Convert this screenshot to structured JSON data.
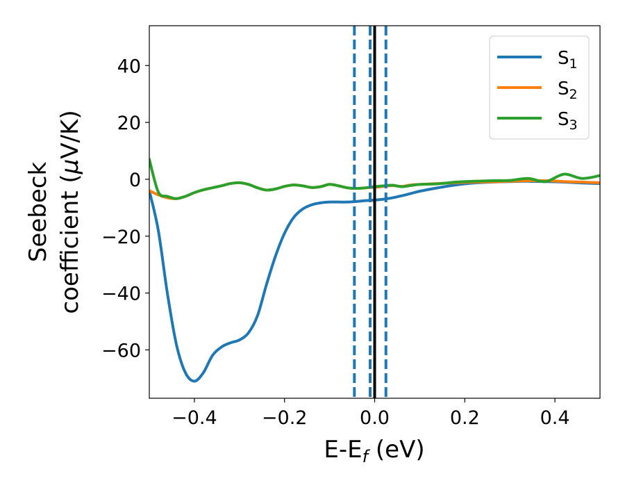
{
  "chart_data": {
    "type": "line",
    "xlabel": "E-E",
    "xlabel_sub": "f",
    "xlabel_unit": " (eV)",
    "ylabel_line1": "Seebeck",
    "ylabel_line2_prefix": "coefficient  (",
    "ylabel_mu": "μ",
    "ylabel_line2_suffix": "V/K)",
    "xlim": [
      -0.5,
      0.5
    ],
    "ylim": [
      -77,
      54
    ],
    "xticks": [
      -0.4,
      -0.2,
      0.0,
      0.2,
      0.4
    ],
    "xtick_labels": [
      "−0.4",
      "−0.2",
      "0.0",
      "0.2",
      "0.4"
    ],
    "yticks": [
      -60,
      -40,
      -20,
      0,
      20,
      40
    ],
    "ytick_labels": [
      "−60",
      "−40",
      "−20",
      "0",
      "20",
      "40"
    ],
    "grid": false,
    "legend_position": "top-right",
    "vlines": [
      {
        "x": -0.045,
        "style": "dashed",
        "color": "#1f77b4"
      },
      {
        "x": -0.01,
        "style": "dashed",
        "color": "#1f77b4"
      },
      {
        "x": 0.025,
        "style": "dashed",
        "color": "#1f77b4"
      },
      {
        "x": 0.0,
        "style": "solid",
        "color": "#000000"
      }
    ],
    "series": [
      {
        "name": "S",
        "sub": "1",
        "color": "#1f77b4",
        "x": [
          -0.5,
          -0.48,
          -0.46,
          -0.44,
          -0.42,
          -0.4,
          -0.38,
          -0.36,
          -0.34,
          -0.32,
          -0.3,
          -0.28,
          -0.26,
          -0.24,
          -0.22,
          -0.2,
          -0.18,
          -0.16,
          -0.14,
          -0.12,
          -0.1,
          -0.08,
          -0.06,
          -0.04,
          -0.02,
          0.0,
          0.02,
          0.04,
          0.06,
          0.08,
          0.1,
          0.14,
          0.18,
          0.22,
          0.26,
          0.3,
          0.34,
          0.38,
          0.42,
          0.46,
          0.5
        ],
        "y": [
          -4,
          -18,
          -40,
          -58,
          -68,
          -71,
          -68,
          -62,
          -59,
          -57.5,
          -56.5,
          -54,
          -48,
          -37,
          -27,
          -19,
          -13.5,
          -10.5,
          -9,
          -8.3,
          -8,
          -8,
          -8,
          -7.8,
          -7.5,
          -7.3,
          -7,
          -6.5,
          -5.8,
          -5,
          -4.2,
          -3,
          -2,
          -1.3,
          -1,
          -0.8,
          -0.7,
          -0.8,
          -1,
          -1.3,
          -1.5
        ]
      },
      {
        "name": "S",
        "sub": "2",
        "color": "#ff7f0e",
        "x": [
          -0.5,
          -0.48,
          -0.46,
          -0.44,
          -0.42,
          -0.4,
          -0.38,
          -0.36,
          -0.34,
          -0.32,
          -0.3,
          -0.28,
          -0.26,
          -0.24,
          -0.22,
          -0.2,
          -0.18,
          -0.16,
          -0.14,
          -0.12,
          -0.1,
          -0.08,
          -0.06,
          -0.04,
          -0.02,
          0.0,
          0.02,
          0.04,
          0.06,
          0.08,
          0.1,
          0.14,
          0.18,
          0.22,
          0.26,
          0.3,
          0.34,
          0.38,
          0.42,
          0.46,
          0.5
        ],
        "y": [
          -4,
          -5.5,
          -6.5,
          -6.8,
          -6,
          -4.7,
          -3.7,
          -3,
          -2.3,
          -1.5,
          -1.2,
          -1.8,
          -3,
          -3.8,
          -3.4,
          -2.5,
          -2,
          -2.3,
          -2.9,
          -2.6,
          -1.8,
          -2.3,
          -3,
          -3.2,
          -3,
          -2.8,
          -2.5,
          -2.2,
          -2.5,
          -2,
          -1.8,
          -1.5,
          -1.2,
          -1,
          -0.9,
          -0.7,
          -0.5,
          -0.5,
          -0.8,
          -1,
          -1.2
        ]
      },
      {
        "name": "S",
        "sub": "3",
        "color": "#2ca02c",
        "x": [
          -0.5,
          -0.48,
          -0.46,
          -0.44,
          -0.42,
          -0.4,
          -0.38,
          -0.36,
          -0.34,
          -0.32,
          -0.3,
          -0.28,
          -0.26,
          -0.24,
          -0.22,
          -0.2,
          -0.18,
          -0.16,
          -0.14,
          -0.12,
          -0.1,
          -0.08,
          -0.06,
          -0.04,
          -0.02,
          0.0,
          0.02,
          0.04,
          0.06,
          0.08,
          0.1,
          0.14,
          0.18,
          0.22,
          0.26,
          0.3,
          0.34,
          0.38,
          0.42,
          0.46,
          0.5
        ],
        "y": [
          7,
          -4.5,
          -6,
          -6.8,
          -6,
          -4.7,
          -3.7,
          -3,
          -2.3,
          -1.5,
          -1.2,
          -1.8,
          -3,
          -3.8,
          -3.4,
          -2.5,
          -2,
          -2.3,
          -2.9,
          -2.6,
          -1.8,
          -2.3,
          -3,
          -3.2,
          -3,
          -2.6,
          -2.3,
          -2.1,
          -2.6,
          -2.2,
          -1.8,
          -1.6,
          -1,
          -0.7,
          -0.5,
          -0.4,
          0.3,
          -0.8,
          1.8,
          0.3,
          1.3
        ]
      }
    ]
  }
}
